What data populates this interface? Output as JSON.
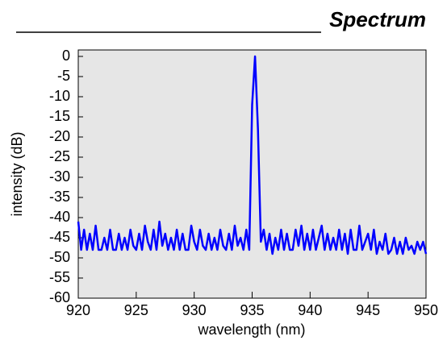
{
  "chart_data": {
    "type": "line",
    "title": "Spectrum",
    "xlabel": "wavelength (nm)",
    "ylabel": "intensity (dB)",
    "xlim": [
      920,
      950
    ],
    "xticks": [
      920,
      925,
      930,
      935,
      940,
      945,
      950
    ],
    "ylim": [
      -60,
      0
    ],
    "yticks": [
      0,
      -5,
      -10,
      -15,
      -20,
      -25,
      -30,
      -35,
      -40,
      -45,
      -50,
      -55,
      -60
    ],
    "x": [
      920,
      920.25,
      920.5,
      920.75,
      921,
      921.25,
      921.5,
      921.75,
      922,
      922.25,
      922.5,
      922.75,
      923,
      923.25,
      923.5,
      923.75,
      924,
      924.25,
      924.5,
      924.75,
      925,
      925.25,
      925.5,
      925.75,
      926,
      926.25,
      926.5,
      926.75,
      927,
      927.25,
      927.5,
      927.75,
      928,
      928.25,
      928.5,
      928.75,
      929,
      929.25,
      929.5,
      929.75,
      930,
      930.25,
      930.5,
      930.75,
      931,
      931.25,
      931.5,
      931.75,
      932,
      932.25,
      932.5,
      932.75,
      933,
      933.25,
      933.5,
      933.75,
      934,
      934.25,
      934.5,
      934.75,
      935,
      935.25,
      935.5,
      935.75,
      936,
      936.25,
      936.5,
      936.75,
      937,
      937.25,
      937.5,
      937.75,
      938,
      938.25,
      938.5,
      938.75,
      939,
      939.25,
      939.5,
      939.75,
      940,
      940.25,
      940.5,
      940.75,
      941,
      941.25,
      941.5,
      941.75,
      942,
      942.25,
      942.5,
      942.75,
      943,
      943.25,
      943.5,
      943.75,
      944,
      944.25,
      944.5,
      944.75,
      945,
      945.25,
      945.5,
      945.75,
      946,
      946.25,
      946.5,
      946.75,
      947,
      947.25,
      947.5,
      947.75,
      948,
      948.25,
      948.5,
      948.75,
      949,
      949.25,
      949.5,
      949.75,
      950
    ],
    "series": [
      {
        "color": "#0000ff",
        "values": [
          -41,
          -48,
          -43,
          -48,
          -44,
          -48,
          -42,
          -48,
          -48,
          -45,
          -48,
          -43,
          -48,
          -48,
          -44,
          -48,
          -45,
          -48,
          -43,
          -47,
          -48,
          -44,
          -48,
          -42,
          -46,
          -48,
          -43,
          -48,
          -41,
          -47,
          -44,
          -48,
          -45,
          -48,
          -43,
          -48,
          -44,
          -48,
          -48,
          -42,
          -46,
          -48,
          -43,
          -47,
          -48,
          -44,
          -48,
          -45,
          -48,
          -43,
          -47,
          -48,
          -44,
          -48,
          -42,
          -47,
          -45,
          -48,
          -43,
          -48,
          -12,
          0,
          -18,
          -46,
          -43,
          -48,
          -44,
          -49,
          -45,
          -48,
          -43,
          -48,
          -44,
          -48,
          -48,
          -43,
          -47,
          -42,
          -48,
          -44,
          -48,
          -43,
          -48,
          -45,
          -42,
          -48,
          -44,
          -48,
          -45,
          -48,
          -43,
          -48,
          -44,
          -49,
          -43,
          -48,
          -48,
          -42,
          -48,
          -46,
          -44,
          -48,
          -43,
          -49,
          -46,
          -48,
          -44,
          -49,
          -48,
          -45,
          -49,
          -46,
          -49,
          -45,
          -48,
          -47,
          -49,
          -46,
          -48,
          -46,
          -49
        ]
      }
    ]
  }
}
